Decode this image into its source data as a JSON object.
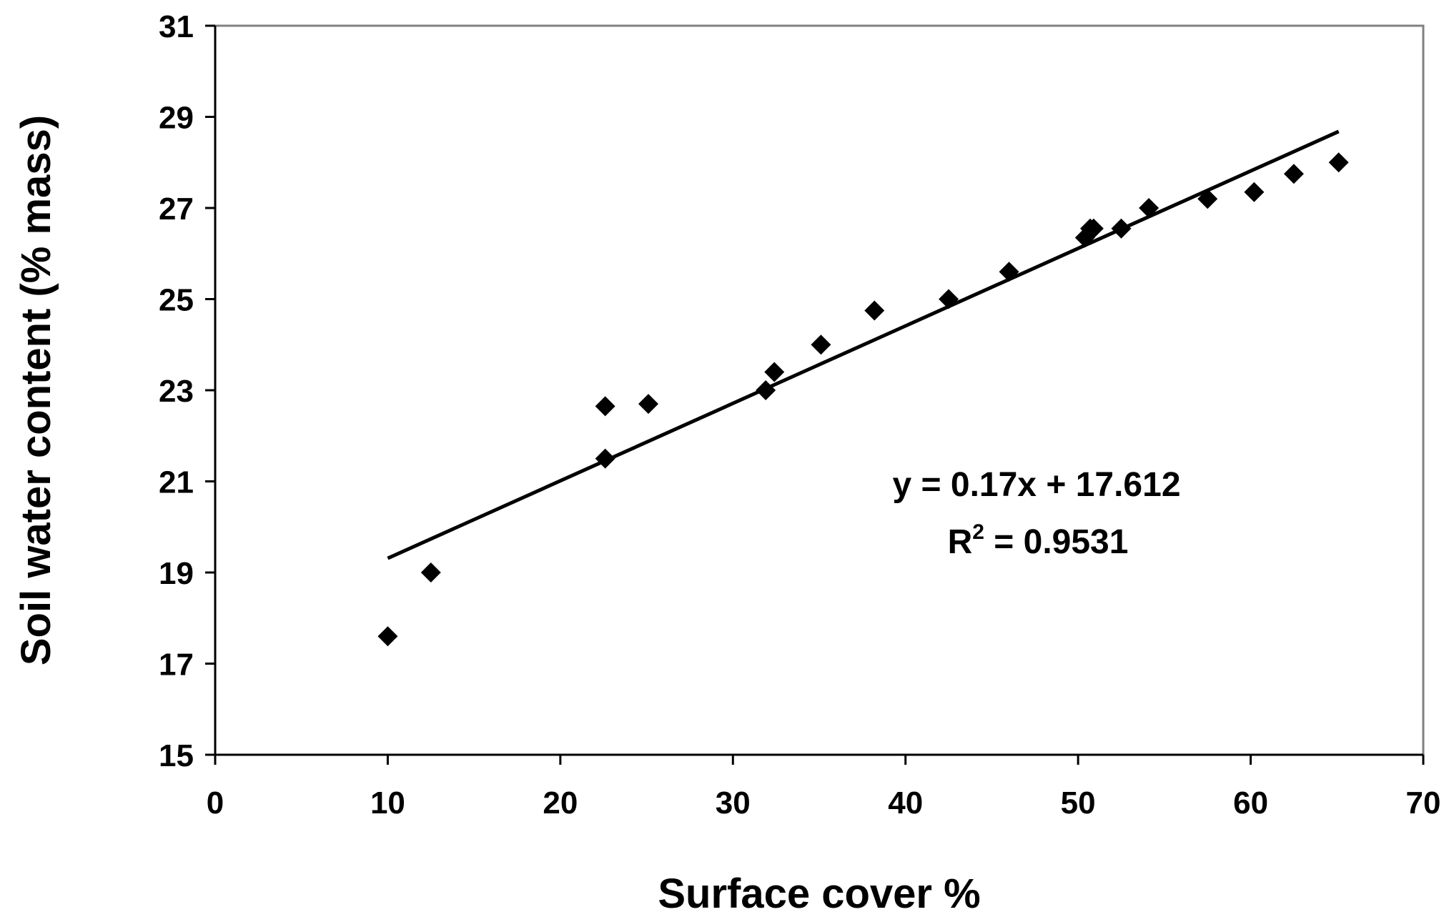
{
  "chart_data": {
    "type": "scatter",
    "xlabel": "Surface cover %",
    "ylabel": "Soil water content (% mass)",
    "xlim": [
      0,
      70
    ],
    "ylim": [
      15,
      31
    ],
    "xticks": [
      0,
      10,
      20,
      30,
      40,
      50,
      60,
      70
    ],
    "yticks": [
      15,
      17,
      19,
      21,
      23,
      25,
      27,
      29,
      31
    ],
    "grid": false,
    "colors": {
      "marker": "#000000",
      "frame": "#808080",
      "axis": "#000000"
    },
    "series": [
      {
        "marker": "diamond",
        "points": [
          [
            10.0,
            17.6
          ],
          [
            12.5,
            19.0
          ],
          [
            22.6,
            22.65
          ],
          [
            22.6,
            21.5
          ],
          [
            25.1,
            22.7
          ],
          [
            31.9,
            23.0
          ],
          [
            32.4,
            23.4
          ],
          [
            35.1,
            24.0
          ],
          [
            38.2,
            24.75
          ],
          [
            42.5,
            25.0
          ],
          [
            46.0,
            25.6
          ],
          [
            50.4,
            26.35
          ],
          [
            50.7,
            26.55
          ],
          [
            50.9,
            26.55
          ],
          [
            52.5,
            26.55
          ],
          [
            54.1,
            27.0
          ],
          [
            57.5,
            27.2
          ],
          [
            60.2,
            27.35
          ],
          [
            62.5,
            27.75
          ],
          [
            65.1,
            28.0
          ]
        ]
      }
    ],
    "trendline": {
      "slope": 0.17,
      "intercept": 17.612,
      "x_range": [
        10,
        65.1
      ]
    },
    "annotations": {
      "equation": "y = 0.17x + 17.612",
      "r2_label": "R",
      "r2_exponent": "2",
      "r2_value": " = 0.9531"
    }
  }
}
